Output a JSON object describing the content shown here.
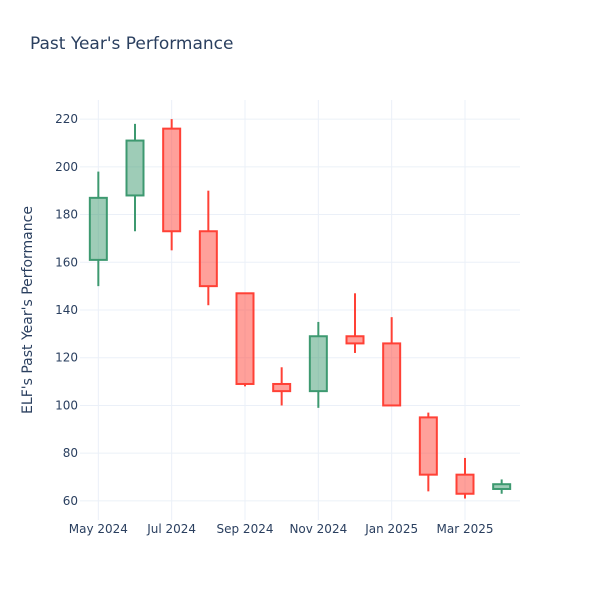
{
  "chart_data": {
    "type": "candlestick",
    "title": "Past Year's Performance",
    "ylabel": "ELF's Past Year's Performance",
    "xlabel": "",
    "ylim": [
      52,
      228
    ],
    "yticks": [
      60,
      80,
      100,
      120,
      140,
      160,
      180,
      200,
      220
    ],
    "x_tick_labels": [
      "May 2024",
      "Jul 2024",
      "Sep 2024",
      "Nov 2024",
      "Jan 2025",
      "Mar 2025"
    ],
    "x_range_months": [
      -0.5,
      11.5
    ],
    "x_tick_positions_months": [
      0,
      2,
      4,
      6,
      8,
      10
    ],
    "grid": true,
    "colors": {
      "increasing": "#3d9970",
      "decreasing": "#ff4136"
    },
    "candles": [
      {
        "month": "2024-05",
        "open": 161,
        "high": 198,
        "low": 150,
        "close": 187
      },
      {
        "month": "2024-06",
        "open": 188,
        "high": 218,
        "low": 173,
        "close": 211
      },
      {
        "month": "2024-07",
        "open": 216,
        "high": 220,
        "low": 165,
        "close": 173
      },
      {
        "month": "2024-08",
        "open": 173,
        "high": 190,
        "low": 142,
        "close": 150
      },
      {
        "month": "2024-09",
        "open": 147,
        "high": 147,
        "low": 108,
        "close": 109
      },
      {
        "month": "2024-10",
        "open": 109,
        "high": 116,
        "low": 100,
        "close": 106
      },
      {
        "month": "2024-11",
        "open": 106,
        "high": 135,
        "low": 99,
        "close": 129
      },
      {
        "month": "2024-12",
        "open": 129,
        "high": 147,
        "low": 122,
        "close": 126
      },
      {
        "month": "2025-01",
        "open": 126,
        "high": 137,
        "low": 100,
        "close": 100
      },
      {
        "month": "2025-02",
        "open": 95,
        "high": 97,
        "low": 64,
        "close": 71
      },
      {
        "month": "2025-03",
        "open": 71,
        "high": 78,
        "low": 61,
        "close": 63
      },
      {
        "month": "2025-04",
        "open": 65,
        "high": 69,
        "low": 63,
        "close": 67
      }
    ]
  }
}
